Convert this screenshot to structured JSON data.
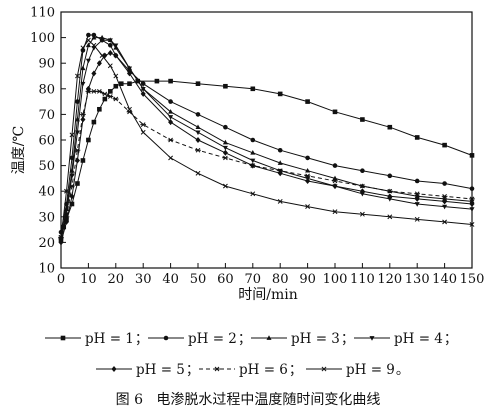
{
  "chart_data": {
    "type": "line",
    "xlabel": "时间/min",
    "ylabel": "温度/℃",
    "xlim": [
      0,
      150
    ],
    "ylim": [
      10,
      110
    ],
    "x_ticks": [
      "0",
      "10",
      "20",
      "30",
      "40",
      "50",
      "60",
      "70",
      "80",
      "90",
      "100",
      "110",
      "120",
      "130",
      "140",
      "150"
    ],
    "y_ticks": [
      "10",
      "20",
      "30",
      "40",
      "50",
      "60",
      "70",
      "80",
      "90",
      "100",
      "110"
    ],
    "grid": false,
    "legend_placement": "bottom",
    "caption": "图 6   电渗脱水过程中温度随时间变化曲线",
    "legend_separators": [
      "；",
      "；",
      "；",
      "；",
      "；",
      "；",
      "。"
    ],
    "series": [
      {
        "name": "pH = 1",
        "marker": "square",
        "dash": "solid",
        "points": [
          [
            0,
            21
          ],
          [
            1,
            26
          ],
          [
            2,
            29
          ],
          [
            4,
            35
          ],
          [
            6,
            43
          ],
          [
            8,
            52
          ],
          [
            10,
            60
          ],
          [
            12,
            67
          ],
          [
            14,
            72
          ],
          [
            16,
            76
          ],
          [
            18,
            79
          ],
          [
            20,
            81
          ],
          [
            22,
            82
          ],
          [
            25,
            82
          ],
          [
            28,
            83
          ],
          [
            35,
            83
          ],
          [
            40,
            83
          ],
          [
            50,
            82
          ],
          [
            60,
            81
          ],
          [
            70,
            80
          ],
          [
            80,
            78
          ],
          [
            90,
            75
          ],
          [
            100,
            71
          ],
          [
            110,
            68
          ],
          [
            120,
            65
          ],
          [
            130,
            61
          ],
          [
            140,
            58
          ],
          [
            150,
            54
          ]
        ]
      },
      {
        "name": "pH = 2",
        "marker": "circle",
        "dash": "solid",
        "points": [
          [
            0,
            24
          ],
          [
            2,
            35
          ],
          [
            4,
            53
          ],
          [
            6,
            75
          ],
          [
            8,
            95
          ],
          [
            10,
            101
          ],
          [
            12,
            101
          ],
          [
            15,
            99
          ],
          [
            18,
            97
          ],
          [
            20,
            93
          ],
          [
            25,
            87
          ],
          [
            30,
            82
          ],
          [
            40,
            75
          ],
          [
            50,
            70
          ],
          [
            60,
            65
          ],
          [
            70,
            60
          ],
          [
            80,
            56
          ],
          [
            90,
            53
          ],
          [
            100,
            50
          ],
          [
            110,
            48
          ],
          [
            120,
            46
          ],
          [
            130,
            44
          ],
          [
            140,
            43
          ],
          [
            150,
            41
          ]
        ]
      },
      {
        "name": "pH = 3",
        "marker": "triangle",
        "dash": "solid",
        "points": [
          [
            0,
            22
          ],
          [
            2,
            33
          ],
          [
            4,
            48
          ],
          [
            6,
            68
          ],
          [
            8,
            88
          ],
          [
            10,
            97
          ],
          [
            12,
            100
          ],
          [
            15,
            100
          ],
          [
            18,
            99
          ],
          [
            20,
            96
          ],
          [
            25,
            88
          ],
          [
            30,
            80
          ],
          [
            40,
            71
          ],
          [
            50,
            65
          ],
          [
            60,
            59
          ],
          [
            70,
            55
          ],
          [
            80,
            51
          ],
          [
            90,
            48
          ],
          [
            100,
            45
          ],
          [
            110,
            42
          ],
          [
            120,
            40
          ],
          [
            130,
            38
          ],
          [
            140,
            37
          ],
          [
            150,
            36
          ]
        ]
      },
      {
        "name": "pH = 4",
        "marker": "triangle-down",
        "dash": "solid",
        "points": [
          [
            0,
            21
          ],
          [
            2,
            31
          ],
          [
            4,
            46
          ],
          [
            6,
            63
          ],
          [
            8,
            82
          ],
          [
            10,
            91
          ],
          [
            12,
            96
          ],
          [
            15,
            99
          ],
          [
            18,
            99
          ],
          [
            20,
            97
          ],
          [
            25,
            88
          ],
          [
            30,
            80
          ],
          [
            40,
            69
          ],
          [
            50,
            63
          ],
          [
            60,
            57
          ],
          [
            70,
            52
          ],
          [
            80,
            48
          ],
          [
            90,
            45
          ],
          [
            100,
            42
          ],
          [
            110,
            39
          ],
          [
            120,
            37
          ],
          [
            130,
            35
          ],
          [
            140,
            34
          ],
          [
            150,
            33
          ]
        ]
      },
      {
        "name": "pH = 5",
        "marker": "diamond",
        "dash": "solid",
        "points": [
          [
            0,
            20
          ],
          [
            2,
            28
          ],
          [
            4,
            38
          ],
          [
            6,
            52
          ],
          [
            8,
            68
          ],
          [
            10,
            80
          ],
          [
            12,
            86
          ],
          [
            14,
            90
          ],
          [
            16,
            93
          ],
          [
            18,
            94
          ],
          [
            20,
            93
          ],
          [
            25,
            86
          ],
          [
            30,
            78
          ],
          [
            40,
            67
          ],
          [
            50,
            60
          ],
          [
            60,
            55
          ],
          [
            70,
            50
          ],
          [
            80,
            47
          ],
          [
            90,
            44
          ],
          [
            100,
            42
          ],
          [
            110,
            40
          ],
          [
            120,
            38
          ],
          [
            130,
            37
          ],
          [
            140,
            36
          ],
          [
            150,
            35
          ]
        ]
      },
      {
        "name": "pH = 6",
        "marker": "asterisk",
        "dash": "dashed",
        "points": [
          [
            0,
            22
          ],
          [
            2,
            30
          ],
          [
            4,
            42
          ],
          [
            6,
            56
          ],
          [
            8,
            70
          ],
          [
            10,
            79
          ],
          [
            12,
            79
          ],
          [
            14,
            79
          ],
          [
            16,
            78
          ],
          [
            18,
            77
          ],
          [
            20,
            76
          ],
          [
            25,
            71
          ],
          [
            30,
            66
          ],
          [
            40,
            60
          ],
          [
            50,
            56
          ],
          [
            60,
            53
          ],
          [
            70,
            50
          ],
          [
            80,
            48
          ],
          [
            90,
            46
          ],
          [
            100,
            44
          ],
          [
            110,
            42
          ],
          [
            120,
            40
          ],
          [
            130,
            39
          ],
          [
            140,
            38
          ],
          [
            150,
            37
          ]
        ]
      },
      {
        "name": "pH = 9",
        "marker": "cross",
        "dash": "solid",
        "points": [
          [
            0,
            22
          ],
          [
            2,
            40
          ],
          [
            4,
            62
          ],
          [
            6,
            85
          ],
          [
            8,
            96
          ],
          [
            10,
            99
          ],
          [
            12,
            97
          ],
          [
            15,
            93
          ],
          [
            18,
            89
          ],
          [
            20,
            85
          ],
          [
            25,
            72
          ],
          [
            30,
            63
          ],
          [
            40,
            53
          ],
          [
            50,
            47
          ],
          [
            60,
            42
          ],
          [
            70,
            39
          ],
          [
            80,
            36
          ],
          [
            90,
            34
          ],
          [
            100,
            32
          ],
          [
            110,
            31
          ],
          [
            120,
            30
          ],
          [
            130,
            29
          ],
          [
            140,
            28
          ],
          [
            150,
            27
          ]
        ]
      }
    ]
  }
}
